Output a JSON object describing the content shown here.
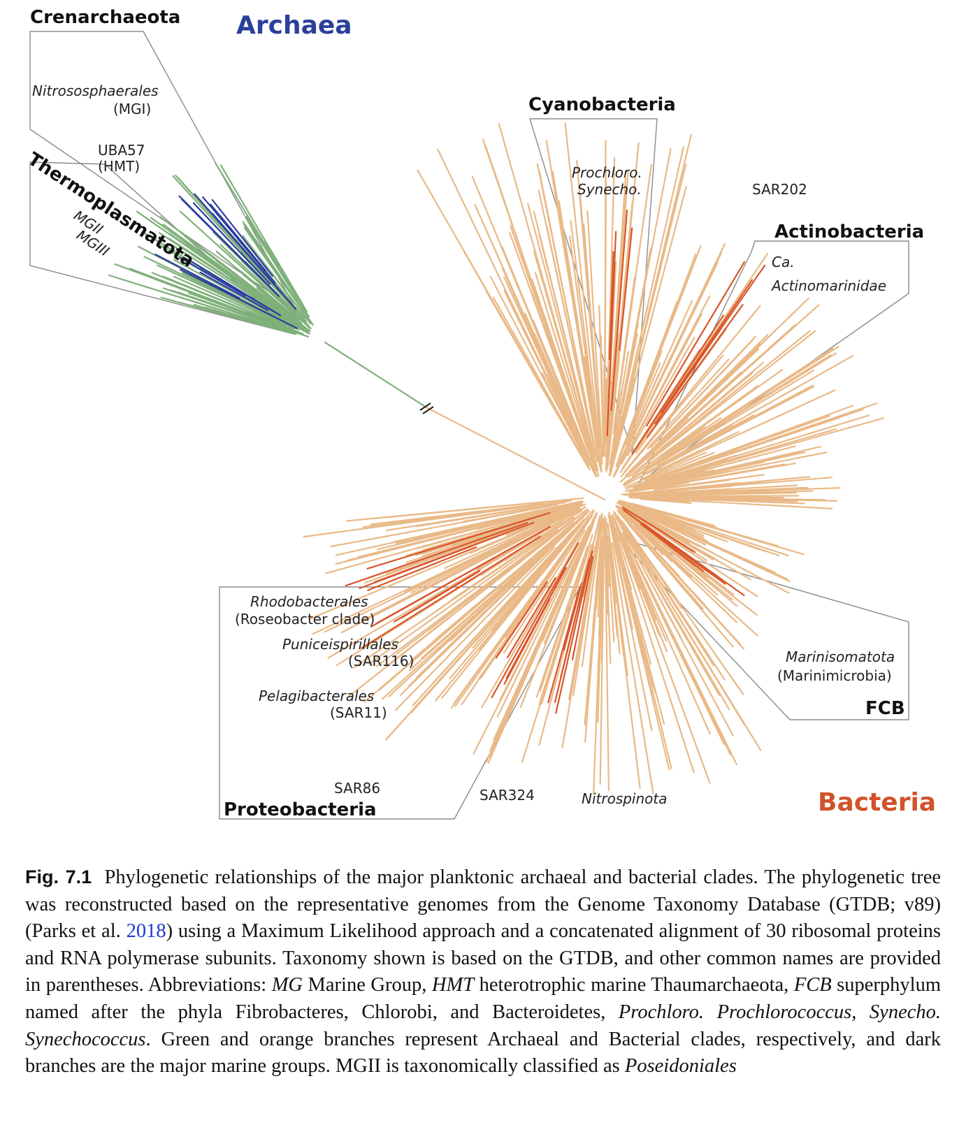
{
  "figure": {
    "domains": {
      "archaea": "Archaea",
      "bacteria": "Bacteria"
    },
    "phyla": {
      "crenarchaeota": "Crenarchaeota",
      "thermoplasmatota": "Thermoplasmatota",
      "cyanobacteria": "Cyanobacteria",
      "actinobacteria": "Actinobacteria",
      "proteobacteria": "Proteobacteria",
      "fcb": "FCB"
    },
    "clades": {
      "nitrososphaerales": "Nitrososphaerales",
      "mgi": "(MGI)",
      "uba57": "UBA57",
      "hmt": "(HMT)",
      "mgii": "MGII",
      "mgiii": "MGIII",
      "prochloro": "Prochloro.",
      "synecho": "Synecho.",
      "sar202": "SAR202",
      "ca": "Ca.",
      "actinomarinidae": "Actinomarinidae",
      "rhodobacterales": "Rhodobacterales",
      "roseobacter": "(Roseobacter clade)",
      "puniceispirillales": "Puniceispirillales",
      "sar116": "(SAR116)",
      "pelagibacterales": "Pelagibacterales",
      "sar11": "(SAR11)",
      "sar86": "SAR86",
      "sar324": "SAR324",
      "nitrospinota": "Nitrospinota",
      "marinisomatota": "Marinisomatota",
      "marinimicrobia": "(Marinimicrobia)"
    },
    "colors": {
      "archaea_branch": "#7fb07a",
      "archaea_marine": "#2c3ea0",
      "bacteria_branch": "#e9b987",
      "bacteria_marine": "#d9552a",
      "box_outline": "#8a8a8a"
    }
  },
  "caption": {
    "label": "Fig. 7.1",
    "part1": "Phylogenetic relationships of the major planktonic archaeal and bacterial clades. The phylogenetic tree was reconstructed based on the representative genomes from the Genome Taxonomy Database (GTDB; v89) (Parks et al. ",
    "ref_year": "2018",
    "part2": ") using a Maximum Likelihood approach and a concatenated alignment of 30 ribosomal proteins and RNA polymerase subunits. Taxonomy shown is based on the GTDB, and other common names are provided in parentheses. Abbreviations: ",
    "abbr_mg": "MG",
    "def_mg": " Marine Group, ",
    "abbr_hmt": "HMT",
    "def_hmt": " heterotrophic marine Thaumarchaeota, ",
    "abbr_fcb": "FCB",
    "def_fcb": " superphylum named after the phyla Fibrobacteres, Chlorobi, and Bacteroidetes, ",
    "abbr_prochloro": "Prochloro. Prochlorococcus,",
    "abbr_synecho": "Synecho. Synechococcus",
    "part3": ". Green and orange branches represent Archaeal and Bacterial clades, respectively, and dark branches are the major marine groups. MGII is taxonomically classified as ",
    "poseidoniales": "Poseidoniales"
  }
}
